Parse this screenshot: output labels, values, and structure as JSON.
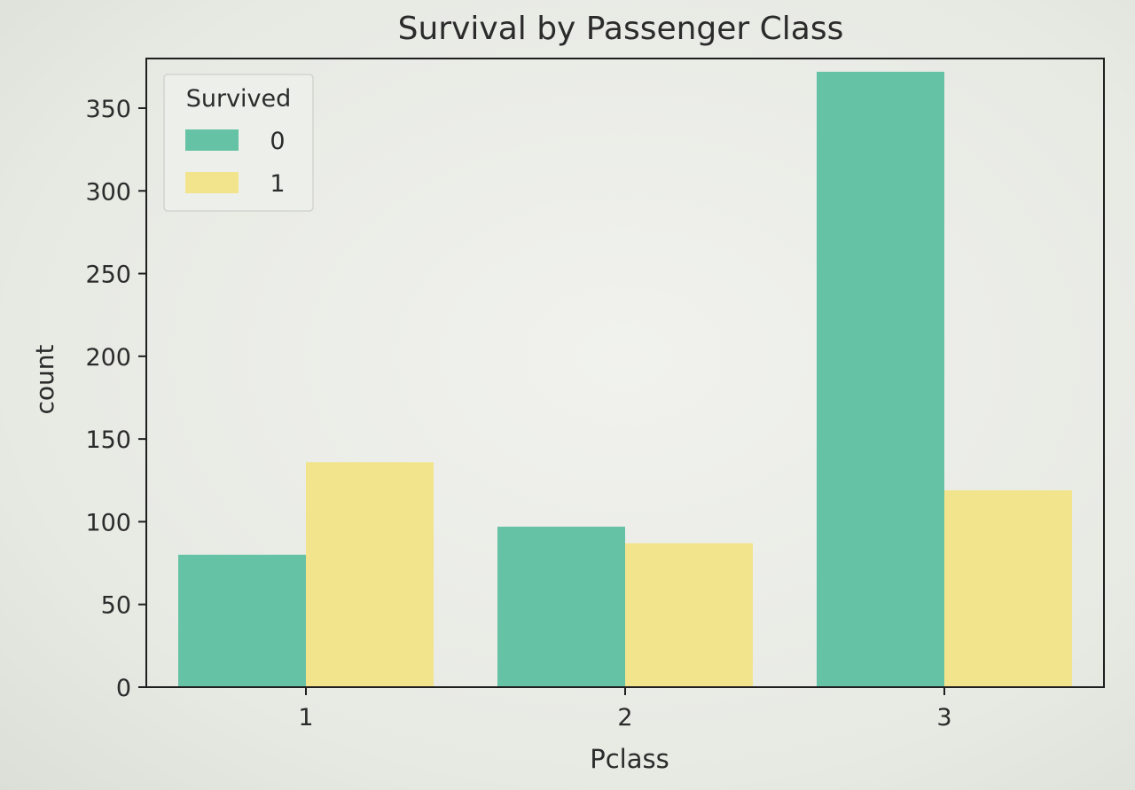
{
  "chart_data": {
    "type": "bar",
    "title": "Survival by Passenger Class",
    "xlabel": "Pclass",
    "ylabel": "count",
    "categories": [
      "1",
      "2",
      "3"
    ],
    "series": [
      {
        "name": "0",
        "values": [
          80,
          97,
          372
        ],
        "color": "#66c2a5"
      },
      {
        "name": "1",
        "values": [
          136,
          87,
          119
        ],
        "color": "#f2e48c"
      }
    ],
    "ylim": [
      0,
      380
    ],
    "yticks": [
      0,
      50,
      100,
      150,
      200,
      250,
      300,
      350
    ],
    "legend": {
      "title": "Survived",
      "placement": "upper-left"
    },
    "grid": false
  }
}
